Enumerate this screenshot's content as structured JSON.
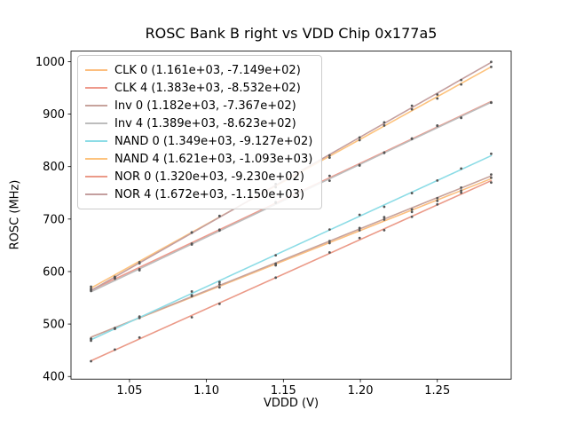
{
  "chart_data": {
    "type": "line",
    "title": "ROSC Bank B right vs VDD Chip 0x177a5",
    "xlabel": "VDDD (V)",
    "ylabel": "ROSC (MHz)",
    "xlim": [
      1.012,
      1.298
    ],
    "ylim": [
      395,
      1020
    ],
    "xticks": [
      1.05,
      1.1,
      1.15,
      1.2,
      1.25
    ],
    "yticks": [
      400,
      500,
      600,
      700,
      800,
      900,
      1000
    ],
    "grid": false,
    "legend_position": "upper left",
    "x_data_range": [
      1.025,
      1.285
    ],
    "marker_x": [
      1.025,
      1.0405,
      1.0565,
      1.0905,
      1.1085,
      1.145,
      1.18,
      1.1995,
      1.2155,
      1.2335,
      1.25,
      1.2655,
      1.285
    ],
    "marker_color": "#555555",
    "series": [
      {
        "name": "CLK 0 (1.161e+03, -7.149e+02)",
        "slope": 1161,
        "intercept": -714.9,
        "color": "#fcbe7e"
      },
      {
        "name": "CLK 4 (1.383e+03, -8.532e+02)",
        "slope": 1383,
        "intercept": -853.2,
        "color": "#ee9a8c"
      },
      {
        "name": "Inv 0 (1.182e+03, -7.367e+02)",
        "slope": 1182,
        "intercept": -736.7,
        "color": "#c7a39c"
      },
      {
        "name": "Inv 4 (1.389e+03, -8.623e+02)",
        "slope": 1389,
        "intercept": -862.3,
        "color": "#bdbdbd"
      },
      {
        "name": "NAND 0 (1.349e+03, -9.127e+02)",
        "slope": 1349,
        "intercept": -912.7,
        "color": "#8cdce6"
      },
      {
        "name": "NAND 4 (1.621e+03, -1.093e+03)",
        "slope": 1621,
        "intercept": -1093.0,
        "color": "#fdc37e"
      },
      {
        "name": "NOR 0 (1.320e+03, -9.230e+02)",
        "slope": 1320,
        "intercept": -923.0,
        "color": "#eb9a88"
      },
      {
        "name": "NOR 4 (1.672e+03, -1.150e+03)",
        "slope": 1672,
        "intercept": -1150.0,
        "color": "#c49f9f"
      }
    ]
  }
}
